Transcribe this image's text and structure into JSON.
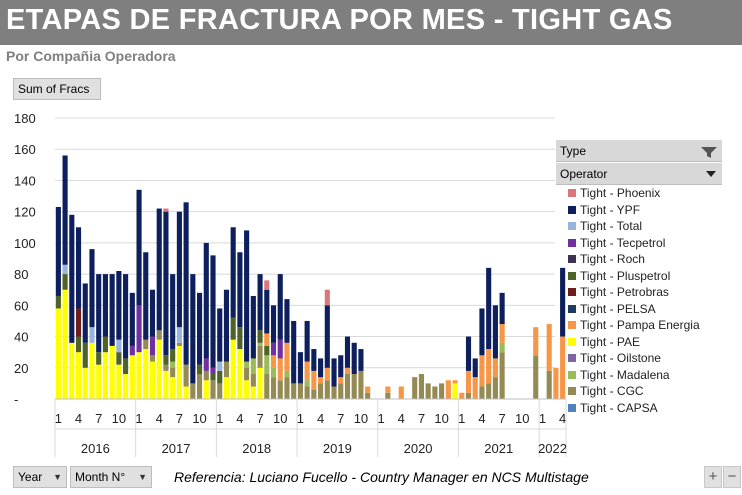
{
  "header": {
    "title": "ETAPAS DE FRACTURA POR MES - TIGHT GAS",
    "subtitle": "Por Compañia Operadora"
  },
  "pivot": {
    "value_field": "Sum of Fracs",
    "axis_field_1": "Year",
    "axis_field_2": "Month  N°"
  },
  "legend": {
    "type_label": "Type",
    "operator_label": "Operator",
    "filter_icon": "funnel-icon",
    "dropdown_icon": "chevron-down-icon",
    "items": [
      {
        "label": "Tight - Phoenix",
        "color": "#d9777a"
      },
      {
        "label": "Tight - YPF",
        "color": "#0d1f5c"
      },
      {
        "label": "Tight - Total",
        "color": "#98b4db"
      },
      {
        "label": "Tight - Tecpetrol",
        "color": "#7030a0"
      },
      {
        "label": "Tight - Roch",
        "color": "#3f3151"
      },
      {
        "label": "Tight - Pluspetrol",
        "color": "#4f6228"
      },
      {
        "label": "Tight - Petrobras",
        "color": "#6e1d1d"
      },
      {
        "label": "Tight - PELSA",
        "color": "#1f3864"
      },
      {
        "label": "Tight - Pampa Energia",
        "color": "#f79646"
      },
      {
        "label": "Tight - PAE",
        "color": "#ffff00"
      },
      {
        "label": "Tight - Oilstone",
        "color": "#8064a2"
      },
      {
        "label": "Tight - Madalena",
        "color": "#9bbb59"
      },
      {
        "label": "Tight - CGC",
        "color": "#948a54"
      },
      {
        "label": "Tight - CAPSA",
        "color": "#4f81bd"
      }
    ]
  },
  "footer": {
    "reference": "Referencia: Luciano Fucello - Country Manager en NCS Multistage",
    "zoom_in": "+",
    "zoom_out": "−"
  },
  "chart_data": {
    "type": "bar",
    "stacked": true,
    "ylim": [
      0,
      180
    ],
    "yticks": [
      0,
      20,
      40,
      60,
      80,
      100,
      120,
      140,
      160,
      180
    ],
    "ytick_labels": [
      "-",
      "20",
      "40",
      "60",
      "80",
      "100",
      "120",
      "140",
      "160",
      "180"
    ],
    "grid": true,
    "legend_position": "right",
    "x_month_ticks": [
      1,
      4,
      7,
      10
    ],
    "years": [
      {
        "label": "2016",
        "months": 12
      },
      {
        "label": "2017",
        "months": 12
      },
      {
        "label": "2018",
        "months": 12
      },
      {
        "label": "2019",
        "months": 12
      },
      {
        "label": "2020",
        "months": 12
      },
      {
        "label": "2021",
        "months": 12
      },
      {
        "label": "2022",
        "months": 4
      }
    ],
    "series_order": [
      "Tight - PAE",
      "Tight - CGC",
      "Tight - Madalena",
      "Tight - Pluspetrol",
      "Tight - Pampa Energia",
      "Tight - Total",
      "Tight - Petrobras",
      "Tight - Tecpetrol",
      "Tight - YPF",
      "Tight - Phoenix"
    ],
    "series": [
      {
        "name": "Tight - PAE",
        "values": [
          58,
          70,
          36,
          30,
          20,
          36,
          22,
          30,
          34,
          22,
          16,
          28,
          30,
          32,
          24,
          38,
          18,
          14,
          34,
          8,
          0,
          0,
          12,
          0,
          0,
          14,
          38,
          32,
          12,
          8,
          20,
          0,
          0,
          0,
          0,
          0,
          0,
          0,
          0,
          0,
          0,
          0,
          0,
          0,
          0,
          0,
          0,
          0,
          0,
          0,
          0,
          0,
          0,
          0,
          0,
          0,
          0,
          0,
          0,
          10,
          0,
          0,
          0,
          0,
          0,
          0,
          0,
          0,
          0,
          0,
          0,
          0,
          0,
          0,
          0,
          0
        ]
      },
      {
        "name": "Tight - CGC",
        "values": [
          0,
          0,
          0,
          0,
          0,
          0,
          0,
          0,
          0,
          0,
          0,
          0,
          0,
          6,
          4,
          6,
          4,
          6,
          2,
          14,
          10,
          16,
          6,
          12,
          10,
          10,
          0,
          0,
          8,
          8,
          14,
          16,
          14,
          12,
          14,
          10,
          10,
          8,
          6,
          10,
          12,
          8,
          10,
          16,
          16,
          18,
          4,
          0,
          0,
          4,
          0,
          0,
          0,
          14,
          16,
          10,
          8,
          10,
          0,
          0,
          0,
          4,
          0,
          8,
          10,
          14,
          30,
          0,
          0,
          0,
          0,
          28,
          0,
          18,
          0,
          0
        ]
      },
      {
        "name": "Tight - Madalena",
        "values": [
          0,
          0,
          0,
          0,
          0,
          0,
          0,
          0,
          0,
          0,
          0,
          0,
          0,
          0,
          0,
          0,
          0,
          4,
          0,
          0,
          0,
          0,
          0,
          0,
          0,
          0,
          0,
          0,
          4,
          10,
          2,
          12,
          6,
          0,
          4,
          0,
          0,
          4,
          0,
          0,
          0,
          0,
          0,
          0,
          0,
          0,
          0,
          0,
          0,
          0,
          0,
          0,
          0,
          0,
          0,
          0,
          0,
          0,
          0,
          0,
          0,
          0,
          0,
          0,
          0,
          0,
          6,
          0,
          0,
          0,
          0,
          0,
          0,
          0,
          0,
          0
        ]
      },
      {
        "name": "Tight - Pluspetrol",
        "values": [
          8,
          10,
          0,
          10,
          16,
          0,
          8,
          10,
          0,
          8,
          10,
          0,
          0,
          0,
          0,
          0,
          6,
          8,
          0,
          0,
          0,
          6,
          0,
          4,
          8,
          0,
          14,
          14,
          0,
          0,
          8,
          6,
          0,
          0,
          0,
          0,
          0,
          0,
          0,
          0,
          0,
          0,
          0,
          0,
          0,
          0,
          0,
          0,
          0,
          0,
          0,
          0,
          0,
          0,
          0,
          0,
          0,
          0,
          0,
          0,
          0,
          0,
          0,
          0,
          0,
          0,
          0,
          0,
          0,
          0,
          0,
          0,
          0,
          0,
          0,
          0
        ]
      },
      {
        "name": "Tight - Pampa Energia",
        "values": [
          0,
          0,
          0,
          0,
          0,
          0,
          0,
          0,
          0,
          0,
          0,
          0,
          0,
          0,
          0,
          0,
          0,
          0,
          0,
          0,
          0,
          0,
          0,
          0,
          0,
          0,
          0,
          0,
          0,
          0,
          0,
          8,
          8,
          14,
          18,
          0,
          0,
          12,
          12,
          4,
          8,
          0,
          4,
          4,
          0,
          0,
          4,
          0,
          0,
          4,
          0,
          8,
          0,
          0,
          0,
          0,
          0,
          0,
          12,
          2,
          4,
          14,
          14,
          20,
          22,
          12,
          12,
          0,
          0,
          0,
          0,
          18,
          0,
          30,
          20,
          40
        ]
      },
      {
        "name": "Tight - Total",
        "values": [
          0,
          6,
          0,
          0,
          0,
          10,
          0,
          0,
          0,
          8,
          0,
          0,
          0,
          0,
          0,
          0,
          0,
          0,
          10,
          0,
          0,
          0,
          0,
          0,
          6,
          0,
          0,
          0,
          0,
          0,
          0,
          0,
          0,
          0,
          0,
          0,
          0,
          0,
          0,
          0,
          0,
          0,
          0,
          0,
          0,
          0,
          0,
          0,
          0,
          0,
          0,
          0,
          0,
          0,
          0,
          0,
          0,
          0,
          0,
          0,
          0,
          0,
          0,
          0,
          0,
          0,
          0,
          0,
          0,
          0,
          0,
          0,
          0,
          0,
          0,
          0
        ]
      },
      {
        "name": "Tight - Petrobras",
        "values": [
          0,
          0,
          0,
          18,
          0,
          0,
          0,
          0,
          0,
          0,
          0,
          0,
          0,
          0,
          0,
          0,
          0,
          0,
          0,
          0,
          0,
          0,
          0,
          0,
          0,
          0,
          0,
          0,
          0,
          0,
          0,
          0,
          0,
          0,
          0,
          0,
          0,
          0,
          0,
          0,
          0,
          0,
          0,
          0,
          0,
          0,
          0,
          0,
          0,
          0,
          0,
          0,
          0,
          0,
          0,
          0,
          0,
          0,
          0,
          0,
          0,
          0,
          0,
          0,
          0,
          0,
          0,
          0,
          0,
          0,
          0,
          0,
          0,
          0,
          0,
          0
        ]
      },
      {
        "name": "Tight - Tecpetrol",
        "values": [
          0,
          0,
          0,
          0,
          0,
          0,
          0,
          0,
          0,
          0,
          0,
          6,
          30,
          0,
          12,
          0,
          0,
          0,
          0,
          0,
          0,
          0,
          8,
          4,
          0,
          0,
          0,
          0,
          0,
          0,
          0,
          0,
          8,
          12,
          0,
          0,
          0,
          0,
          0,
          0,
          0,
          0,
          0,
          0,
          0,
          0,
          0,
          0,
          0,
          0,
          0,
          0,
          0,
          0,
          0,
          0,
          0,
          0,
          0,
          0,
          0,
          0,
          0,
          0,
          0,
          0,
          0,
          0,
          0,
          0,
          0,
          0,
          0,
          0,
          0,
          0
        ]
      },
      {
        "name": "Tight - YPF",
        "values": [
          57,
          70,
          82,
          52,
          38,
          50,
          50,
          40,
          46,
          44,
          54,
          34,
          74,
          56,
          30,
          78,
          92,
          48,
          74,
          104,
          70,
          46,
          74,
          72,
          34,
          46,
          58,
          48,
          84,
          40,
          36,
          28,
          24,
          42,
          28,
          40,
          20,
          26,
          14,
          12,
          40,
          18,
          14,
          20,
          20,
          14,
          0,
          0,
          0,
          0,
          0,
          0,
          0,
          0,
          0,
          0,
          0,
          0,
          0,
          0,
          0,
          22,
          12,
          30,
          52,
          34,
          20,
          0,
          0,
          0,
          0,
          0,
          0,
          0,
          0,
          44
        ]
      },
      {
        "name": "Tight - Phoenix",
        "values": [
          0,
          0,
          0,
          0,
          0,
          0,
          0,
          0,
          0,
          0,
          0,
          0,
          0,
          0,
          0,
          0,
          2,
          0,
          0,
          0,
          0,
          0,
          0,
          0,
          0,
          0,
          0,
          0,
          0,
          0,
          0,
          6,
          0,
          0,
          0,
          0,
          0,
          0,
          0,
          0,
          10,
          0,
          0,
          0,
          0,
          0,
          0,
          0,
          0,
          0,
          0,
          0,
          0,
          0,
          0,
          0,
          0,
          0,
          0,
          0,
          0,
          0,
          0,
          0,
          0,
          0,
          0,
          0,
          0,
          0,
          0,
          0,
          0,
          0,
          0,
          0
        ]
      }
    ]
  }
}
